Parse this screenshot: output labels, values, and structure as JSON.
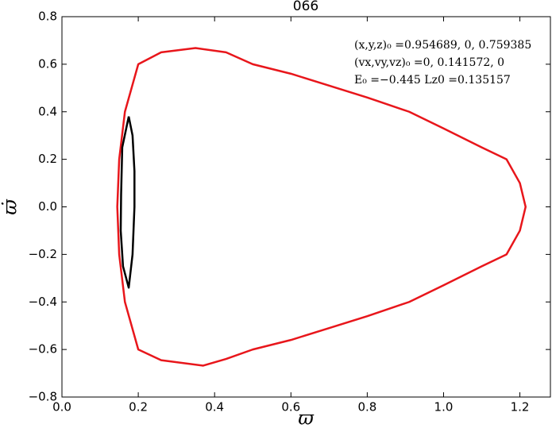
{
  "chart_data": {
    "type": "line",
    "title": "066",
    "x_label": "ϖ",
    "y_label": "ϖ̇",
    "annotations": [
      "(x,y,z)₀ =0.954689, 0, 0.759385",
      "(vx,vy,vz)₀ =0, 0.141572, 0",
      "E₀ =−0.445  Lz0 =0.135157"
    ],
    "xlim": [
      0,
      1.28
    ],
    "ylim": [
      -0.8,
      0.8
    ],
    "xticks": [
      {
        "value": 0,
        "label": "0.0"
      },
      {
        "value": 0.2,
        "label": "0.2"
      },
      {
        "value": 0.4,
        "label": "0.4"
      },
      {
        "value": 0.6,
        "label": "0.6"
      },
      {
        "value": 0.8,
        "label": "0.8"
      },
      {
        "value": 1,
        "label": "1.0"
      },
      {
        "value": 1.2,
        "label": "1.2"
      }
    ],
    "yticks": [
      {
        "value": -0.8,
        "label": "−0.8"
      },
      {
        "value": -0.6,
        "label": "−0.6"
      },
      {
        "value": -0.4,
        "label": "−0.4"
      },
      {
        "value": -0.2,
        "label": "−0.2"
      },
      {
        "value": 0,
        "label": "0.0"
      },
      {
        "value": 0.2,
        "label": "0.2"
      },
      {
        "value": 0.4,
        "label": "0.4"
      },
      {
        "value": 0.6,
        "label": "0.6"
      },
      {
        "value": 0.8,
        "label": "0.8"
      }
    ],
    "series": [
      {
        "color": "#e8161b",
        "x": [
          0.145,
          0.15,
          0.165,
          0.2,
          0.26,
          0.35,
          0.43,
          0.5,
          0.6,
          0.7,
          0.8,
          0.91,
          1.0,
          1.1,
          1.165,
          1.2,
          1.215,
          1.2,
          1.165,
          1.1,
          1.0,
          0.91,
          0.8,
          0.7,
          0.6,
          0.5,
          0.43,
          0.37,
          0.26,
          0.2,
          0.165,
          0.15,
          0.145
        ],
        "y": [
          0,
          0.2,
          0.4,
          0.6,
          0.65,
          0.668,
          0.65,
          0.6,
          0.56,
          0.51,
          0.46,
          0.4,
          0.33,
          0.25,
          0.2,
          0.1,
          0,
          -0.1,
          -0.2,
          -0.25,
          -0.33,
          -0.4,
          -0.46,
          -0.51,
          -0.56,
          -0.6,
          -0.64,
          -0.668,
          -0.645,
          -0.6,
          -0.4,
          -0.2,
          0
        ]
      },
      {
        "color": "#000000",
        "x": [
          0.175,
          0.185,
          0.19,
          0.19,
          0.185,
          0.175,
          0.16,
          0.154,
          0.155,
          0.158,
          0.175
        ],
        "y": [
          0.38,
          0.3,
          0.15,
          0,
          -0.2,
          -0.34,
          -0.25,
          -0.1,
          0.05,
          0.25,
          0.38
        ]
      }
    ]
  }
}
